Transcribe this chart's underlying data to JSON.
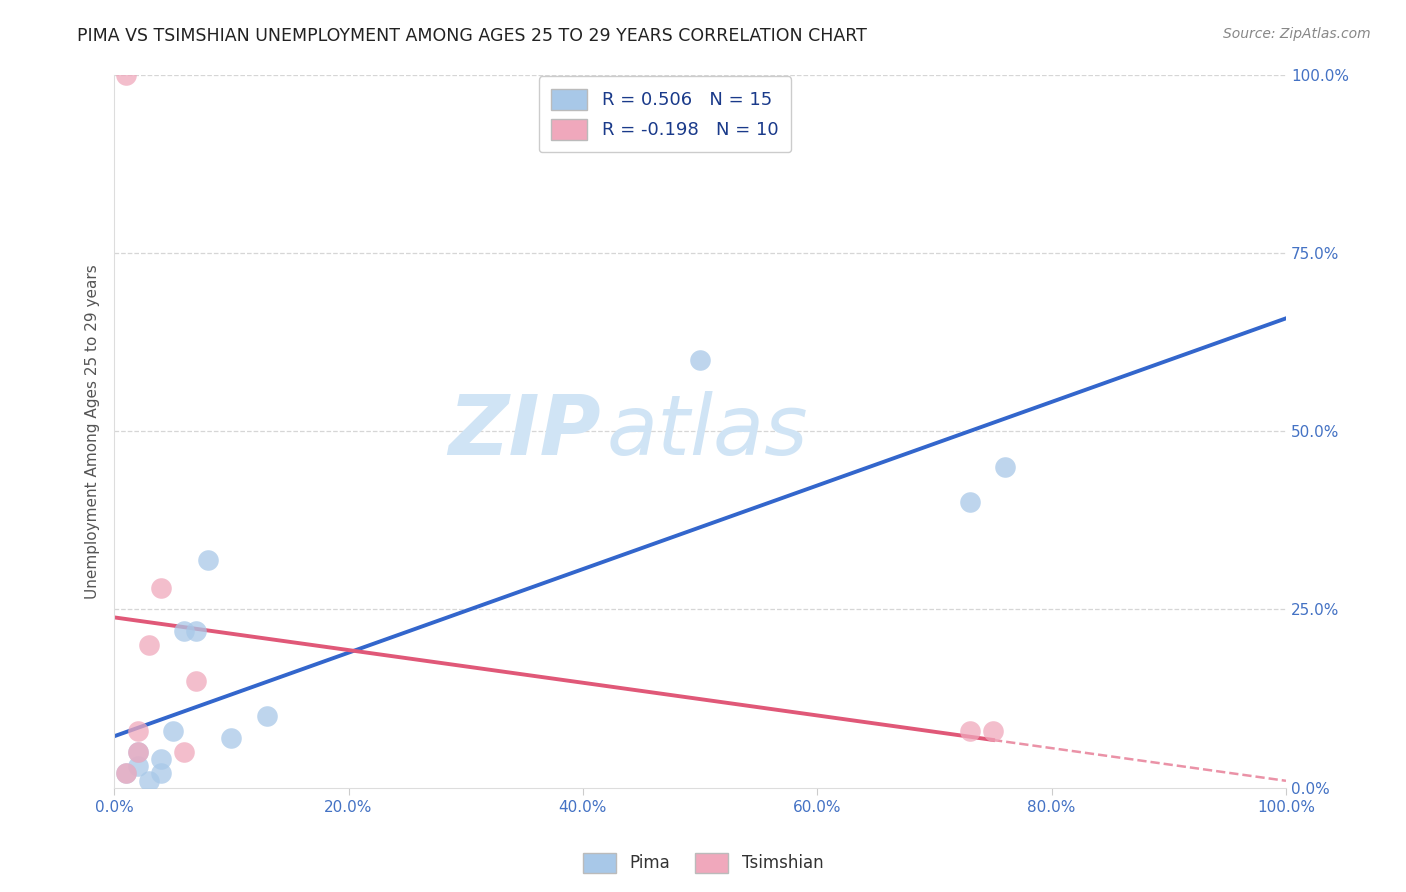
{
  "title": "PIMA VS TSIMSHIAN UNEMPLOYMENT AMONG AGES 25 TO 29 YEARS CORRELATION CHART",
  "source": "Source: ZipAtlas.com",
  "ylabel": "Unemployment Among Ages 25 to 29 years",
  "pima_x": [
    0.01,
    0.02,
    0.02,
    0.03,
    0.04,
    0.04,
    0.05,
    0.06,
    0.07,
    0.08,
    0.1,
    0.13,
    0.5,
    0.73,
    0.76
  ],
  "pima_y": [
    0.02,
    0.03,
    0.05,
    0.01,
    0.02,
    0.04,
    0.08,
    0.22,
    0.22,
    0.32,
    0.07,
    0.1,
    0.6,
    0.4,
    0.45
  ],
  "tsimshian_x": [
    0.01,
    0.01,
    0.02,
    0.02,
    0.03,
    0.04,
    0.06,
    0.07,
    0.73,
    0.75
  ],
  "tsimshian_y": [
    1.0,
    0.02,
    0.05,
    0.08,
    0.2,
    0.28,
    0.05,
    0.15,
    0.08,
    0.08
  ],
  "pima_R": 0.506,
  "pima_N": 15,
  "tsimshian_R": -0.198,
  "tsimshian_N": 10,
  "pima_color": "#A8C8E8",
  "pima_line_color": "#3366CC",
  "tsimshian_color": "#F0A8BC",
  "tsimshian_line_color": "#E05878",
  "grid_color": "#CCCCCC",
  "background_color": "#FFFFFF",
  "watermark_zip": "ZIP",
  "watermark_atlas": "atlas",
  "watermark_color": "#D0E4F5",
  "xlim": [
    0.0,
    1.0
  ],
  "ylim": [
    0.0,
    1.0
  ],
  "yticks": [
    0.0,
    0.25,
    0.5,
    0.75,
    1.0
  ],
  "xticks": [
    0.0,
    0.2,
    0.4,
    0.6,
    0.8,
    1.0
  ],
  "title_color": "#222222",
  "axis_label_color": "#555555",
  "tick_label_color": "#4472C4",
  "legend_label_color": "#1a3a8a",
  "source_color": "#888888"
}
